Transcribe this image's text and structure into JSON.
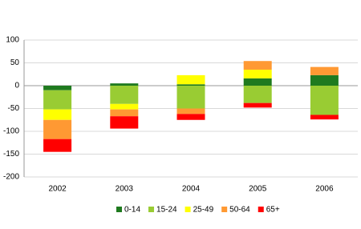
{
  "chart_data": {
    "type": "stacked-bar",
    "categories": [
      "2002",
      "2003",
      "2004",
      "2005",
      "2006"
    ],
    "series": [
      {
        "name": "0-14",
        "color": "#1f7a1f",
        "values": [
          -10,
          5,
          3,
          16,
          23
        ]
      },
      {
        "name": "15-24",
        "color": "#99cc33",
        "values": [
          -42,
          -40,
          -50,
          -38,
          -64
        ]
      },
      {
        "name": "25-49",
        "color": "#ffff00",
        "values": [
          -23,
          -12,
          20,
          19,
          0
        ]
      },
      {
        "name": "50-64",
        "color": "#ff9933",
        "values": [
          -42,
          -15,
          -12,
          19,
          18
        ]
      },
      {
        "name": "65+",
        "color": "#ff0000",
        "values": [
          -28,
          -27,
          -13,
          -10,
          -10
        ]
      }
    ],
    "ylim": [
      -200,
      100
    ],
    "yticks": [
      -200,
      -150,
      -100,
      -50,
      0,
      50,
      100
    ],
    "grid": true
  }
}
